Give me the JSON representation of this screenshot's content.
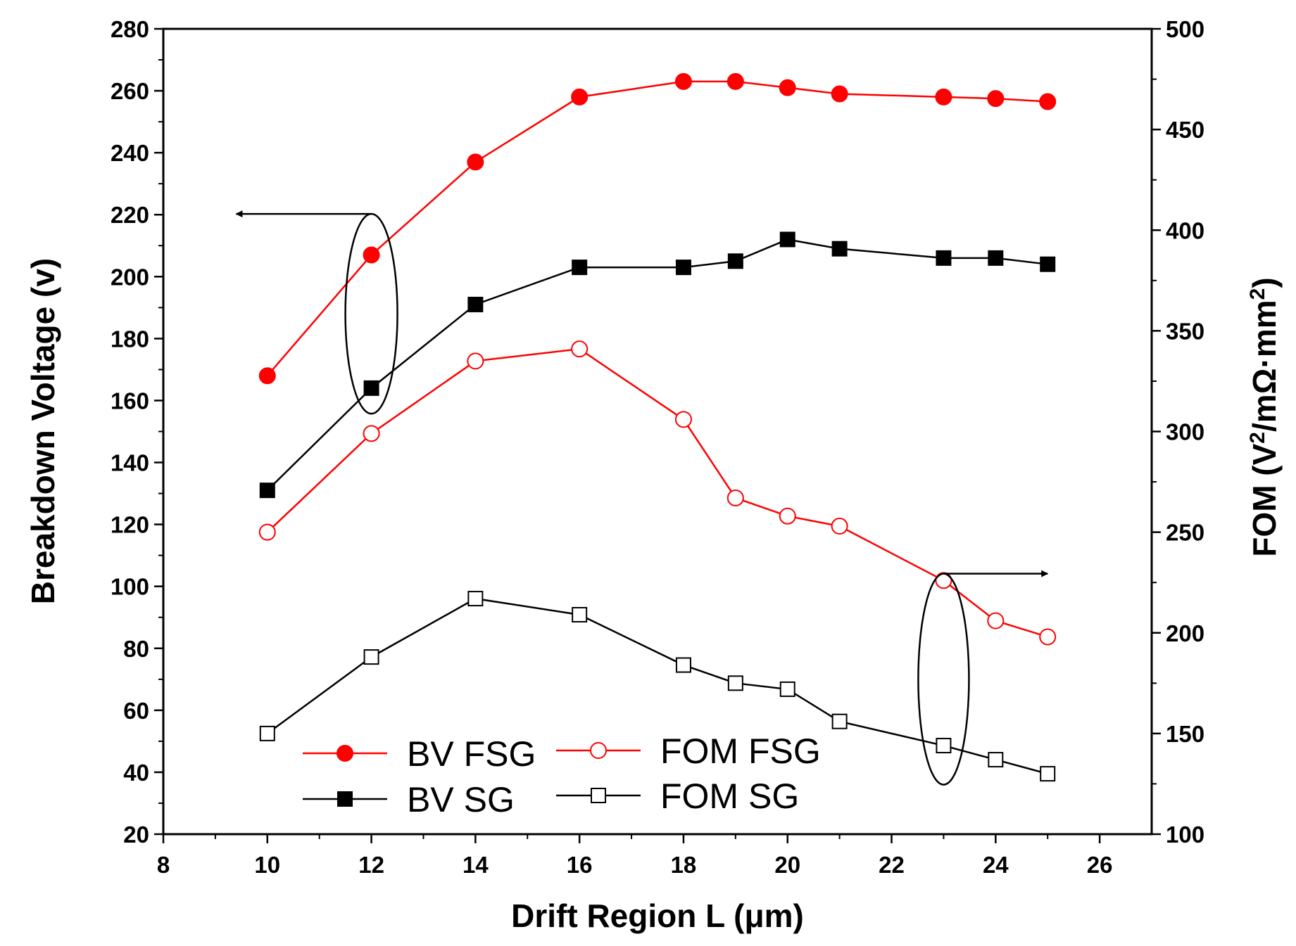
{
  "chart_data": {
    "type": "line",
    "xlabel": "Drift Region L (μm)",
    "ylabel_left": "Breakdown Voltage (v)",
    "ylabel_right": "FOM (V²/mΩ·mm²)",
    "xlim": [
      8,
      27
    ],
    "ylim_left": [
      20,
      280
    ],
    "ylim_right": [
      100,
      500
    ],
    "x_ticks": [
      8,
      10,
      12,
      14,
      16,
      18,
      20,
      22,
      24,
      26
    ],
    "y_ticks_left": [
      20,
      40,
      60,
      80,
      100,
      120,
      140,
      160,
      180,
      200,
      220,
      240,
      260,
      280
    ],
    "y_ticks_right": [
      100,
      150,
      200,
      250,
      300,
      350,
      400,
      450,
      500
    ],
    "legend_placement": "bottom-center",
    "series": [
      {
        "name": "BV FSG",
        "axis": "left",
        "color": "#ff0000",
        "marker": "filled-circle",
        "x": [
          10,
          12,
          14,
          16,
          18,
          19,
          20,
          21,
          23,
          24,
          25
        ],
        "values": [
          168,
          207,
          237,
          258,
          263,
          263,
          261,
          259,
          258,
          257.5,
          256.5
        ]
      },
      {
        "name": "BV SG",
        "axis": "left",
        "color": "#000000",
        "marker": "filled-square",
        "x": [
          10,
          12,
          14,
          16,
          18,
          19,
          20,
          21,
          23,
          24,
          25
        ],
        "values": [
          131,
          164,
          191,
          203,
          203,
          205,
          212,
          209,
          206,
          206,
          204
        ]
      },
      {
        "name": "FOM FSG",
        "axis": "right",
        "color": "#ff0000",
        "marker": "open-circle",
        "x": [
          10,
          12,
          14,
          16,
          18,
          19,
          20,
          21,
          23,
          24,
          25
        ],
        "values": [
          250,
          299,
          335,
          341,
          306,
          267,
          258,
          253,
          226,
          206,
          198
        ]
      },
      {
        "name": "FOM SG",
        "axis": "right",
        "color": "#000000",
        "marker": "open-square",
        "x": [
          10,
          12,
          14,
          16,
          18,
          19,
          20,
          21,
          23,
          24,
          25
        ],
        "values": [
          150,
          188,
          217,
          209,
          184,
          175,
          172,
          156,
          144,
          137,
          130
        ]
      }
    ],
    "annotations": [
      {
        "type": "ellipse-with-arrow",
        "target_series": [
          "BV FSG",
          "BV SG"
        ],
        "at_x": 12,
        "arrow_direction": "left",
        "meaning": "left axis"
      },
      {
        "type": "ellipse-with-arrow",
        "target_series": [
          "FOM FSG",
          "FOM SG"
        ],
        "at_x": 23,
        "arrow_direction": "right",
        "meaning": "right axis"
      }
    ]
  }
}
